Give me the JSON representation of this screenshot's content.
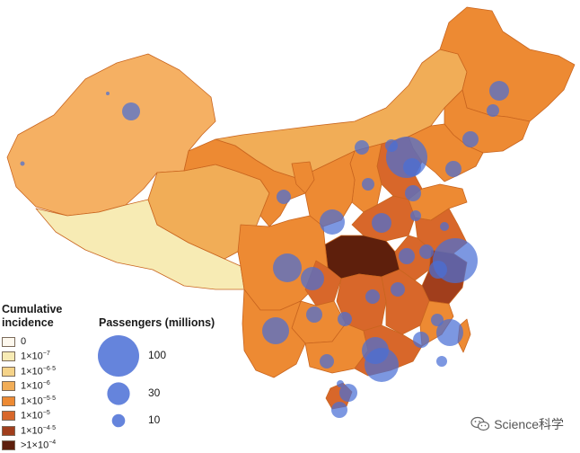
{
  "legend": {
    "incidence_title_line1": "Cumulative",
    "incidence_title_line2": "incidence",
    "incidence_items": [
      {
        "base": "0",
        "exp": "",
        "color": "#fdf8ee"
      },
      {
        "base": "1×10",
        "exp": "−7",
        "color": "#f7ebb4"
      },
      {
        "base": "1×10",
        "exp": "−6·5",
        "color": "#f5d389"
      },
      {
        "base": "1×10",
        "exp": "−6",
        "color": "#f1ad57"
      },
      {
        "base": "1×10",
        "exp": "−5·5",
        "color": "#ed8a33"
      },
      {
        "base": "1×10",
        "exp": "−5",
        "color": "#d8672a"
      },
      {
        "base": "1×10",
        "exp": "−4·5",
        "color": "#a13e1c"
      },
      {
        "base": ">1×10",
        "exp": "−4",
        "color": "#5e1f0c"
      }
    ],
    "passengers_title": "Passengers (millions)",
    "passenger_items": [
      {
        "label": "100",
        "value": 100
      },
      {
        "label": "30",
        "value": 30
      },
      {
        "label": "10",
        "value": 10
      }
    ]
  },
  "colors": {
    "bubble": "#4a6fd6",
    "province_border": "#c9651f"
  },
  "watermark": {
    "text": "Science科学",
    "icon": "wechat-icon"
  }
}
